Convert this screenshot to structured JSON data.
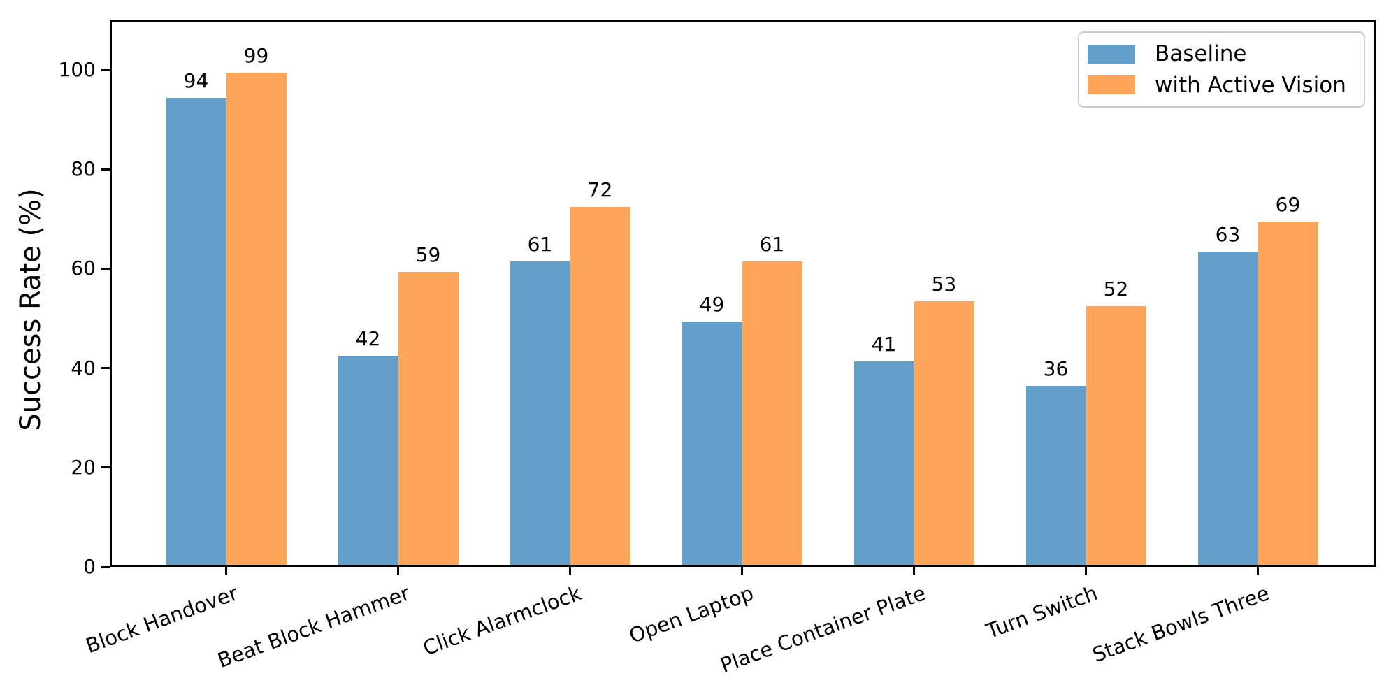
{
  "chart_data": {
    "type": "bar",
    "title": "",
    "xlabel": "",
    "ylabel": "Success Rate (%)",
    "categories": [
      "Block Handover",
      "Beat Block Hammer",
      "Click Alarmclock",
      "Open Laptop",
      "Place Container Plate",
      "Turn Switch",
      "Stack Bowls Three"
    ],
    "series": [
      {
        "name": "Baseline",
        "color": "#62A0CB",
        "values": [
          94,
          42,
          61,
          49,
          41,
          36,
          63
        ]
      },
      {
        "name": "with Active Vision",
        "color": "#FFA65A",
        "values": [
          99,
          59,
          72,
          61,
          53,
          52,
          69
        ]
      }
    ],
    "yticks": [
      0,
      20,
      40,
      60,
      80,
      100
    ],
    "ylim": [
      0,
      110
    ],
    "grid": false,
    "bar_value_labels_shown": true,
    "legend_position": "top-right",
    "axis_color": "#000000"
  }
}
